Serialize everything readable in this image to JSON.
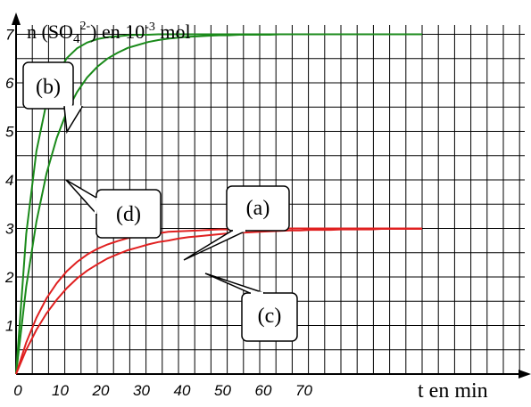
{
  "chart_data": {
    "type": "line",
    "ylabel_parts": {
      "pre": "n (SO",
      "sub": "4",
      "sup": "2-",
      "mid": ") en 10",
      "exp": "-3",
      "post": " mol"
    },
    "xlabel": "t en min",
    "x_ticks": [
      "0",
      "10",
      "20",
      "30",
      "40",
      "50",
      "60",
      "70"
    ],
    "y_ticks": [
      "1",
      "2",
      "3",
      "4",
      "5",
      "6",
      "7"
    ],
    "xlim": [
      0,
      100
    ],
    "ylim": [
      0,
      8
    ],
    "grid": true,
    "x": [
      0,
      2.5,
      5,
      7.5,
      10,
      12.5,
      15,
      17.5,
      20,
      22.5,
      25,
      27.5,
      30,
      32.5,
      35,
      37.5,
      40,
      42.5,
      45,
      47.5,
      50,
      52.5,
      55,
      57.5,
      60,
      62.5,
      65,
      67.5,
      70,
      72.5,
      75,
      77.5,
      80,
      82.5,
      85,
      87.5,
      90,
      92.5,
      95,
      97.5,
      100
    ],
    "series": [
      {
        "name": "(b)",
        "color": "#1a8a1a",
        "values": [
          0,
          2.89,
          4.59,
          5.59,
          6.17,
          6.51,
          6.71,
          6.83,
          6.9,
          6.94,
          6.96,
          6.98,
          6.99,
          6.99,
          7.0,
          7.0,
          7.0,
          7.0,
          7.0,
          7.0,
          7.0,
          7.0,
          7.0,
          7.0,
          7.0,
          7.0,
          7.0,
          7.0,
          7.0,
          7.0,
          7.0,
          7.0,
          7.0,
          7.0,
          7.0,
          7.0,
          7.0,
          7.0,
          7.0,
          7.0,
          7.0
        ]
      },
      {
        "name": "(d)",
        "color": "#1a8a1a",
        "values": [
          0,
          1.8,
          3.14,
          4.13,
          4.86,
          5.41,
          5.81,
          6.11,
          6.33,
          6.5,
          6.62,
          6.72,
          6.78,
          6.84,
          6.88,
          6.91,
          6.93,
          6.95,
          6.96,
          6.97,
          6.98,
          6.98,
          6.99,
          6.99,
          6.99,
          6.99,
          7.0,
          7.0,
          7.0,
          7.0,
          7.0,
          7.0,
          7.0,
          7.0,
          7.0,
          7.0,
          7.0,
          7.0,
          7.0,
          7.0,
          7.0
        ]
      },
      {
        "name": "(a)",
        "color": "#e02020",
        "values": [
          0,
          0.65,
          1.16,
          1.56,
          1.87,
          2.12,
          2.31,
          2.46,
          2.58,
          2.67,
          2.74,
          2.8,
          2.84,
          2.88,
          2.9,
          2.93,
          2.94,
          2.95,
          2.96,
          2.97,
          2.98,
          2.98,
          2.99,
          2.99,
          2.99,
          2.99,
          3.0,
          3.0,
          3.0,
          3.0,
          3.0,
          3.0,
          3.0,
          3.0,
          3.0,
          3.0,
          3.0,
          3.0,
          3.0,
          3.0,
          3.0
        ]
      },
      {
        "name": "(c)",
        "color": "#e02020",
        "values": [
          0,
          0.5,
          0.91,
          1.25,
          1.53,
          1.77,
          1.97,
          2.13,
          2.26,
          2.38,
          2.47,
          2.55,
          2.61,
          2.67,
          2.72,
          2.75,
          2.79,
          2.82,
          2.84,
          2.86,
          2.88,
          2.9,
          2.91,
          2.92,
          2.93,
          2.94,
          2.95,
          2.96,
          2.96,
          2.97,
          2.97,
          2.97,
          2.98,
          2.98,
          2.98,
          2.98,
          2.99,
          2.99,
          2.99,
          2.99,
          2.99
        ]
      }
    ],
    "callouts": [
      {
        "label": "(b)"
      },
      {
        "label": "(d)"
      },
      {
        "label": "(a)"
      },
      {
        "label": "(c)"
      }
    ]
  }
}
